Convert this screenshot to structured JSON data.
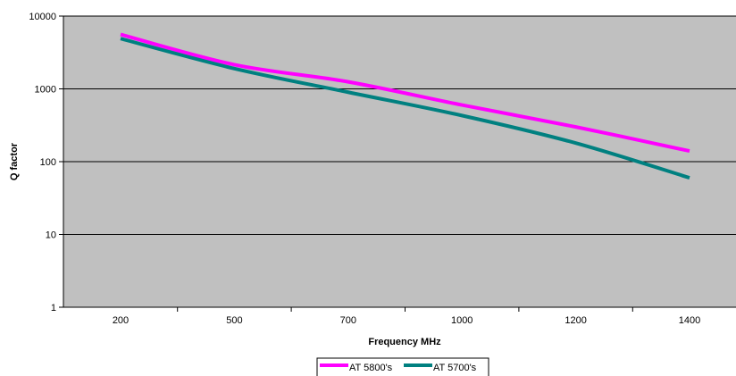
{
  "chart_data": {
    "type": "line",
    "title": "",
    "xlabel": "Frequency MHz",
    "ylabel": "Q factor",
    "categories": [
      "200",
      "500",
      "700",
      "1000",
      "1200",
      "1400"
    ],
    "y_scale": "log",
    "ylim": [
      1,
      10000
    ],
    "y_ticks": [
      "1",
      "10",
      "100",
      "1000",
      "10000"
    ],
    "grid": "horizontal major",
    "legend_position": "bottom",
    "series": [
      {
        "name": "AT 5800's",
        "color": "#ff00ff",
        "values": [
          5600,
          2150,
          1250,
          600,
          300,
          140
        ]
      },
      {
        "name": "AT 5700's",
        "color": "#008080",
        "values": [
          4900,
          1900,
          900,
          430,
          180,
          60
        ]
      }
    ],
    "colors": {
      "plot_background": "#c0c0c0",
      "gridline": "#000000"
    }
  }
}
